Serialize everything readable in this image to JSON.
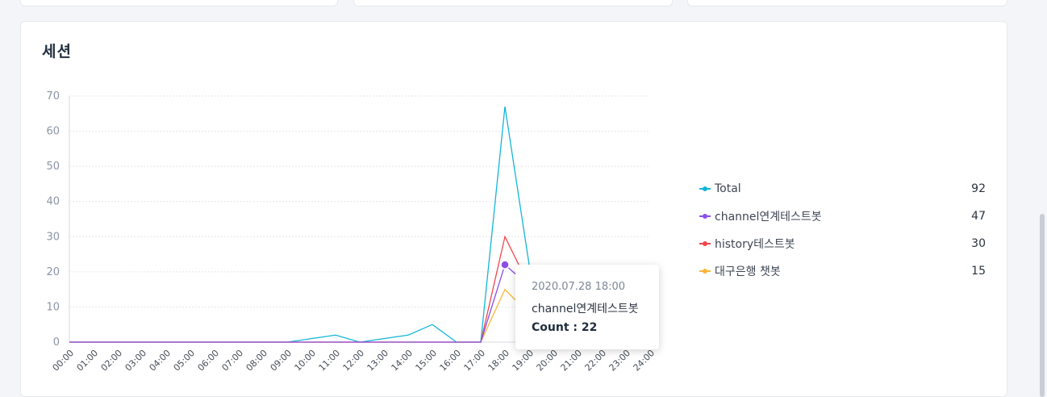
{
  "card": {
    "title": "세션"
  },
  "chart_data": {
    "type": "line",
    "x": [
      "00:00",
      "01:00",
      "02:00",
      "03:00",
      "04:00",
      "05:00",
      "06:00",
      "07:00",
      "08:00",
      "09:00",
      "10:00",
      "11:00",
      "12:00",
      "13:00",
      "14:00",
      "15:00",
      "16:00",
      "17:00",
      "18:00",
      "19:00",
      "20:00",
      "21:00",
      "22:00",
      "23:00",
      "24:00"
    ],
    "ylim": [
      0,
      70
    ],
    "yticks": [
      0,
      10,
      20,
      30,
      40,
      50,
      60,
      70
    ],
    "grid": true,
    "legend_position": "right",
    "series": [
      {
        "name": "Total",
        "color": "#13b5d8",
        "legend_value": "92",
        "values": [
          0,
          0,
          0,
          0,
          0,
          0,
          0,
          0,
          0,
          0,
          1,
          2,
          0,
          1,
          2,
          5,
          0,
          0,
          67,
          22,
          0,
          0,
          0,
          0,
          0
        ]
      },
      {
        "name": "channel연계테스트봇",
        "color": "#8a4fe8",
        "legend_value": "47",
        "values": [
          0,
          0,
          0,
          0,
          0,
          0,
          0,
          0,
          0,
          0,
          0,
          0,
          0,
          0,
          0,
          0,
          0,
          0,
          22,
          16,
          0,
          0,
          0,
          0,
          0
        ]
      },
      {
        "name": "history테스트봇",
        "color": "#f2454d",
        "legend_value": "30",
        "values": [
          0,
          0,
          0,
          0,
          0,
          0,
          0,
          0,
          0,
          0,
          0,
          0,
          0,
          0,
          0,
          0,
          0,
          0,
          30,
          16,
          0,
          0,
          0,
          0,
          0
        ]
      },
      {
        "name": "대구은행 챗봇",
        "color": "#f8b73a",
        "legend_value": "15",
        "values": [
          0,
          0,
          0,
          0,
          0,
          0,
          0,
          0,
          0,
          0,
          0,
          0,
          0,
          0,
          0,
          0,
          0,
          0,
          15,
          8,
          0,
          0,
          0,
          0,
          0
        ]
      }
    ]
  },
  "tooltip": {
    "date": "2020.07.28 18:00",
    "series": "channel연계테스트봇",
    "count_label": "Count : 22",
    "series_index": 1,
    "x_index": 18
  }
}
